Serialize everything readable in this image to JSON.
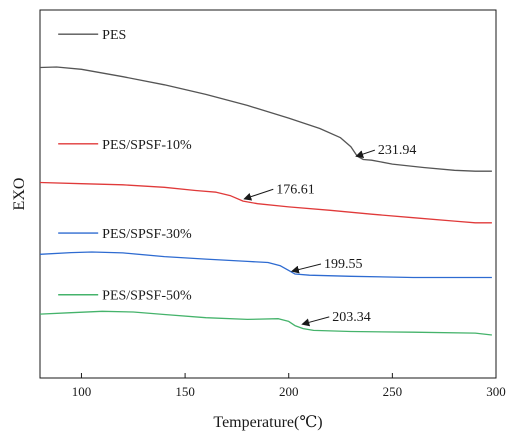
{
  "chart_data": {
    "type": "line",
    "xlabel": "Temperature(℃)",
    "ylabel": "EXO",
    "xlim": [
      80,
      300
    ],
    "xticks": [
      100,
      150,
      200,
      250,
      300
    ],
    "y_ticks_shown": false,
    "grid": false,
    "legend": "inline labels at left of each curve",
    "series": [
      {
        "name": "PES",
        "color": "#555555",
        "x": [
          80,
          88,
          100,
          120,
          140,
          160,
          180,
          200,
          215,
          225,
          230,
          233,
          236,
          240,
          250,
          265,
          280,
          290,
          298
        ],
        "y": [
          75.0,
          75.2,
          74.2,
          71.0,
          67.5,
          63.3,
          58.5,
          53.0,
          48.5,
          44.5,
          40.5,
          36.5,
          35.0,
          34.7,
          33.0,
          31.5,
          30.3,
          29.9,
          29.9
        ]
      },
      {
        "name": "PES/SPSF-10%",
        "color": "#e03a3a",
        "x": [
          80,
          100,
          120,
          140,
          155,
          165,
          172,
          178,
          185,
          200,
          220,
          240,
          260,
          280,
          290,
          298
        ],
        "y": [
          25.0,
          24.5,
          24.0,
          22.9,
          21.5,
          20.8,
          19.2,
          16.9,
          15.8,
          14.4,
          12.9,
          11.2,
          9.7,
          8.2,
          7.5,
          7.5
        ]
      },
      {
        "name": "PES/SPSF-30%",
        "color": "#2e6bd1",
        "x": [
          80,
          95,
          105,
          120,
          140,
          160,
          180,
          190,
          196,
          200,
          203,
          210,
          230,
          260,
          298
        ],
        "y": [
          -6.2,
          -5.5,
          -5.2,
          -5.6,
          -7.2,
          -8.3,
          -9.3,
          -9.8,
          -11.2,
          -13.2,
          -14.8,
          -15.3,
          -15.8,
          -16.3,
          -16.3
        ]
      },
      {
        "name": "PES/SPSF-50%",
        "color": "#45b36b",
        "x": [
          80,
          95,
          110,
          125,
          140,
          160,
          180,
          195,
          200,
          203,
          207,
          212,
          230,
          260,
          290,
          298
        ],
        "y": [
          -32.2,
          -31.6,
          -31.0,
          -31.3,
          -32.4,
          -33.8,
          -34.5,
          -34.2,
          -35.4,
          -37.2,
          -38.5,
          -39.3,
          -39.8,
          -40.1,
          -40.5,
          -41.3
        ]
      }
    ],
    "annotations": [
      {
        "text": "231.94",
        "at_x": 233,
        "at_y": 36.5,
        "text_x": 243,
        "text_y": 39.5
      },
      {
        "text": "176.61",
        "at_x": 179,
        "at_y": 18.0,
        "text_x": 194,
        "text_y": 22.5
      },
      {
        "text": "199.55",
        "at_x": 202,
        "at_y": -13.5,
        "text_x": 217,
        "text_y": -10.0
      },
      {
        "text": "203.34",
        "at_x": 207,
        "at_y": -36.5,
        "text_x": 221,
        "text_y": -33.0
      }
    ],
    "label_anchors": [
      {
        "series": 0,
        "label_x": 110,
        "label_y": 89.5
      },
      {
        "series": 1,
        "label_x": 110,
        "label_y": 41.8
      },
      {
        "series": 2,
        "label_x": 110,
        "label_y": 3.0
      },
      {
        "series": 3,
        "label_x": 110,
        "label_y": -23.8
      }
    ],
    "y_view": [
      -60,
      100
    ]
  }
}
